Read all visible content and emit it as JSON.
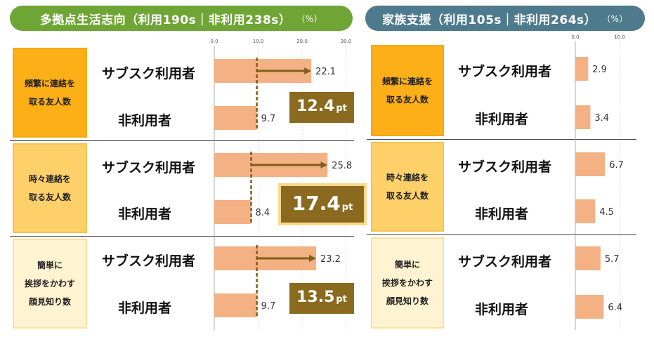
{
  "left_panel": {
    "title": "多拠点生活志向（利用190s｜非利用238s）",
    "unit": "（%）"
  },
  "right_panel": {
    "title": "家族支援（利用105s｜非利用264s）",
    "unit": "（%）"
  },
  "categories": [
    {
      "line1": "頻繁に連絡を",
      "line2": "取る友人数",
      "line3": ""
    },
    {
      "line1": "時々連絡を",
      "line2": "取る友人数",
      "line3": ""
    },
    {
      "line1": "簡単に",
      "line2": "挨拶をかわす",
      "line3": "顔見知り数"
    }
  ],
  "series_labels": {
    "user": "サブスク利用者",
    "nonuser": "非利用者"
  },
  "differences": [
    {
      "value": "12.4",
      "unit": "pt"
    },
    {
      "value": "17.4",
      "unit": "pt"
    },
    {
      "value": "13.5",
      "unit": "pt"
    }
  ],
  "colors": {
    "bar": "#f4b183",
    "arrow": "#7f5f1c",
    "left_title": "#6ea534",
    "right_title": "#4d7a8c",
    "diff_box": "#8a6a1e"
  },
  "chart_data": [
    {
      "type": "bar",
      "orientation": "horizontal",
      "title": "多拠点生活志向（利用190s｜非利用238s）",
      "unit": "%",
      "xlim": [
        0,
        30
      ],
      "ticks": [
        "0.0",
        "10.0",
        "20.0",
        "30.0"
      ],
      "categories": [
        "頻繁に連絡を取る友人数",
        "時々連絡を取る友人数",
        "簡単に挨拶をかわす顔見知り数"
      ],
      "series": [
        {
          "name": "サブスク利用者",
          "values": [
            22.1,
            25.8,
            23.2
          ],
          "labels": [
            "22.1",
            "25.8",
            "23.2"
          ]
        },
        {
          "name": "非利用者",
          "values": [
            9.7,
            8.4,
            9.7
          ],
          "labels": [
            "9.7",
            "8.4",
            "9.7"
          ]
        }
      ]
    },
    {
      "type": "bar",
      "orientation": "horizontal",
      "title": "家族支援（利用105s｜非利用264s）",
      "unit": "%",
      "xlim": [
        0,
        10
      ],
      "ticks": [
        "0.0",
        "10.0"
      ],
      "categories": [
        "頻繁に連絡を取る友人数",
        "時々連絡を取る友人数",
        "簡単に挨拶をかわす顔見知り数"
      ],
      "series": [
        {
          "name": "サブスク利用者",
          "values": [
            2.9,
            6.7,
            5.7
          ],
          "labels": [
            "2.9",
            "6.7",
            "5.7"
          ]
        },
        {
          "name": "非利用者",
          "values": [
            3.4,
            4.5,
            6.4
          ],
          "labels": [
            "3.4",
            "4.5",
            "6.4"
          ]
        }
      ]
    }
  ]
}
